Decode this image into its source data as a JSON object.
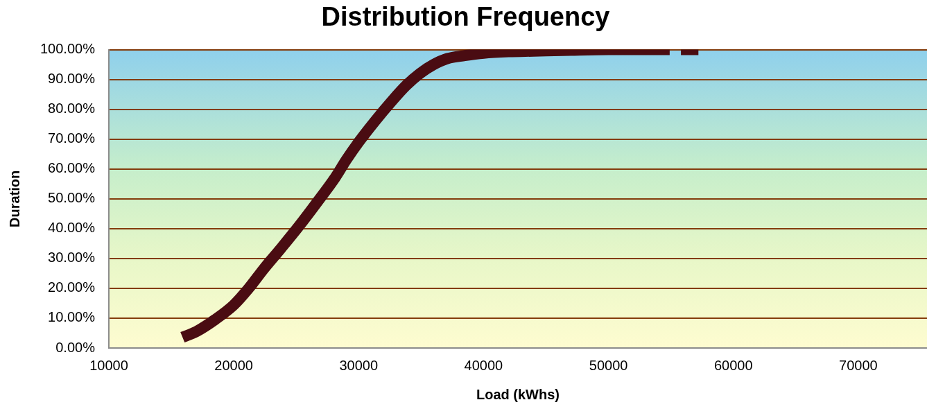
{
  "chart_data": {
    "type": "line",
    "title": "Distribution Frequency",
    "xlabel": "Load (kWhs)",
    "ylabel": "Duration",
    "x": [
      15900,
      17000,
      18500,
      20000,
      21200,
      22400,
      23800,
      25250,
      26700,
      28100,
      29000,
      30000,
      31300,
      32600,
      33800,
      34900,
      36000,
      37100,
      38500,
      40000,
      42000,
      44000,
      47000,
      50000,
      52500,
      54900,
      null,
      55800,
      57200
    ],
    "series": [
      {
        "color": "#4a0c12",
        "values": [
          3.6,
          5.5,
          9.5,
          14.4,
          20,
          26.5,
          33.5,
          41,
          49,
          57,
          63,
          69,
          76,
          82.5,
          88,
          92,
          95,
          97,
          98,
          98.8,
          99.3,
          99.5,
          99.8,
          100,
          100,
          100,
          null,
          100,
          100
        ]
      }
    ],
    "xlim": [
      10000,
      75500
    ],
    "xticks": [
      10000,
      20000,
      30000,
      40000,
      50000,
      60000,
      70000
    ],
    "ylim": [
      0,
      100
    ],
    "yticks": [
      {
        "value": 0,
        "label": "0.00%"
      },
      {
        "value": 10,
        "label": "10.00%"
      },
      {
        "value": 20,
        "label": "20.00%"
      },
      {
        "value": 30,
        "label": "30.00%"
      },
      {
        "value": 40,
        "label": "40.00%"
      },
      {
        "value": 50,
        "label": "50.00%"
      },
      {
        "value": 60,
        "label": "60.00%"
      },
      {
        "value": 70,
        "label": "70.00%"
      },
      {
        "value": 80,
        "label": "80.00%"
      },
      {
        "value": 90,
        "label": "90.00%"
      },
      {
        "value": 100,
        "label": "100.00%"
      }
    ],
    "grid": "y",
    "legend": false,
    "marker": "none",
    "line_style": "solid"
  }
}
